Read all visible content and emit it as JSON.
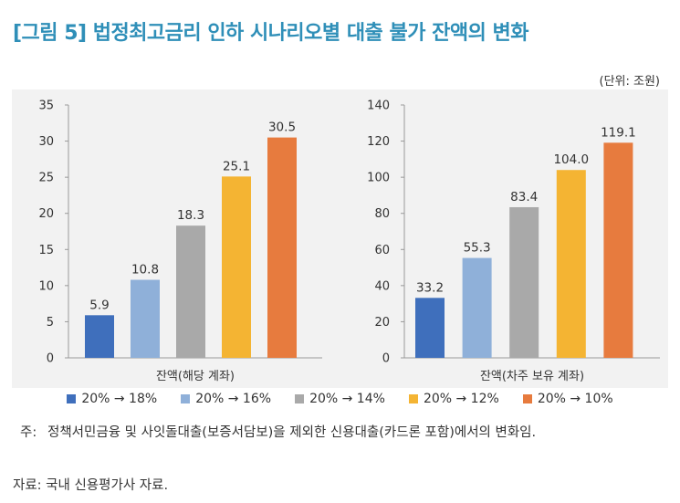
{
  "title": "[그림 5] 법정최고금리 인하 시나리오별 대출 불가 잔액의 변화",
  "unit": "(단위: 조원)",
  "colors": {
    "frame_bg": "#f2f2f2",
    "axis": "#999999",
    "title": "#2f8fb8"
  },
  "legend": [
    {
      "label": "20% → 18%",
      "color": "#3f6fbc"
    },
    {
      "label": "20% → 16%",
      "color": "#8fb0d9"
    },
    {
      "label": "20% → 14%",
      "color": "#a9a9a9"
    },
    {
      "label": "20% → 12%",
      "color": "#f4b433"
    },
    {
      "label": "20% → 10%",
      "color": "#e77b3e"
    }
  ],
  "chart_data": [
    {
      "type": "bar",
      "xlabel": "잔액(해당 계좌)",
      "ylim": [
        0,
        35
      ],
      "yticks": [
        "0",
        "5",
        "10",
        "15",
        "20",
        "25",
        "30",
        "35"
      ],
      "series": [
        {
          "name": "20% → 18%",
          "values": [
            5.9
          ],
          "labels": [
            "5.9"
          ]
        },
        {
          "name": "20% → 16%",
          "values": [
            10.8
          ],
          "labels": [
            "10.8"
          ]
        },
        {
          "name": "20% → 14%",
          "values": [
            18.3
          ],
          "labels": [
            "18.3"
          ]
        },
        {
          "name": "20% → 12%",
          "values": [
            25.1
          ],
          "labels": [
            "25.1"
          ]
        },
        {
          "name": "20% → 10%",
          "values": [
            30.5
          ],
          "labels": [
            "30.5"
          ]
        }
      ],
      "grid": false,
      "legend_position": "bottom"
    },
    {
      "type": "bar",
      "xlabel": "잔액(차주 보유 계좌)",
      "ylim": [
        0,
        140
      ],
      "yticks": [
        "0",
        "20",
        "40",
        "60",
        "80",
        "100",
        "120",
        "140"
      ],
      "series": [
        {
          "name": "20% → 18%",
          "values": [
            33.2
          ],
          "labels": [
            "33.2"
          ]
        },
        {
          "name": "20% → 16%",
          "values": [
            55.3
          ],
          "labels": [
            "55.3"
          ]
        },
        {
          "name": "20% → 14%",
          "values": [
            83.4
          ],
          "labels": [
            "83.4"
          ]
        },
        {
          "name": "20% → 12%",
          "values": [
            104.0
          ],
          "labels": [
            "104.0"
          ]
        },
        {
          "name": "20% → 10%",
          "values": [
            119.1
          ],
          "labels": [
            "119.1"
          ]
        }
      ],
      "grid": false,
      "legend_position": "bottom"
    }
  ],
  "note": {
    "prefix": "주:",
    "text": "정책서민금융 및 사잇돌대출(보증서담보)을 제외한 신용대출(카드론 포함)에서의 변화임."
  },
  "source": "자료: 국내 신용평가사 자료."
}
